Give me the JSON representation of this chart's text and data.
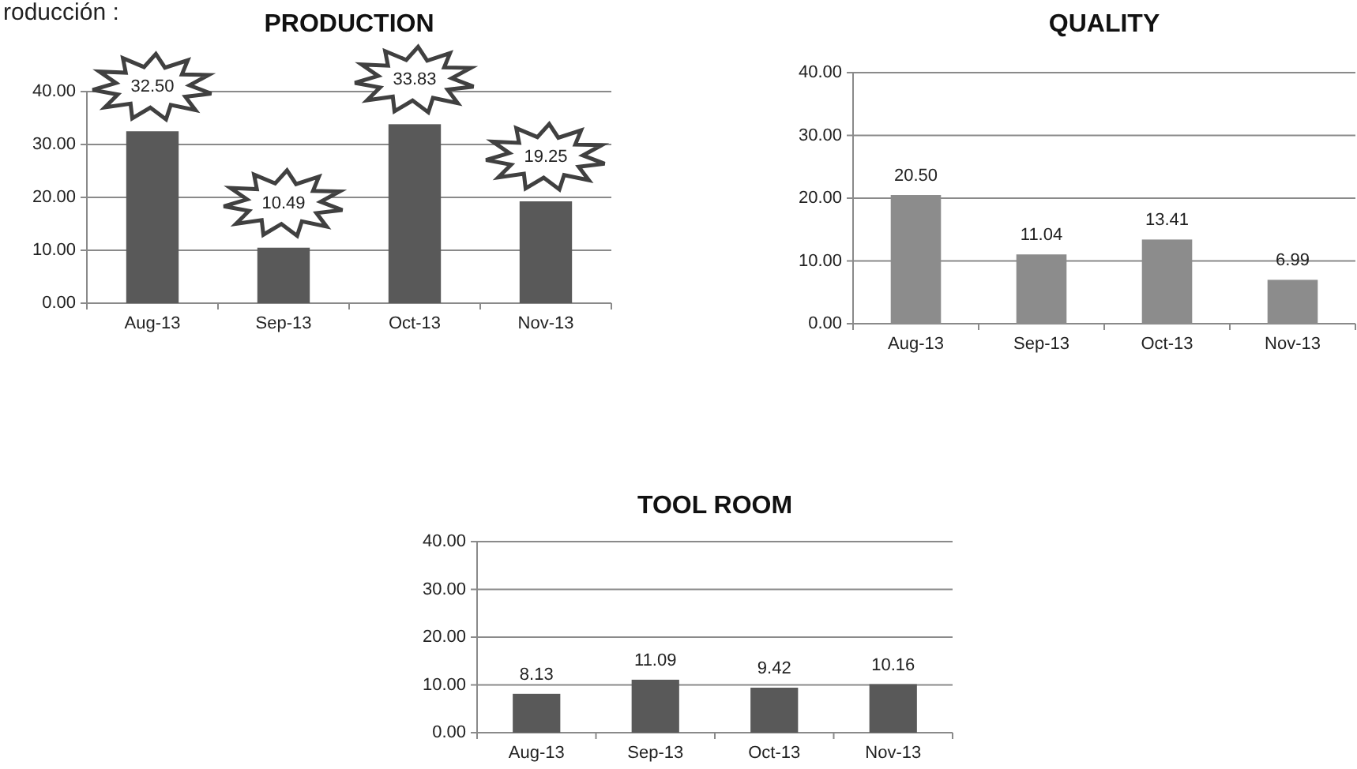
{
  "chart_data": [
    {
      "type": "bar",
      "title": "PRODUCTION",
      "annotations": [
        "roducción :"
      ],
      "categories": [
        "Aug-13",
        "Sep-13",
        "Oct-13",
        "Nov-13"
      ],
      "values": [
        32.5,
        10.49,
        33.83,
        19.25
      ],
      "value_labels": [
        "32.50",
        "10.49",
        "33.83",
        "19.25"
      ],
      "color": "#595959",
      "ylim": [
        0,
        40
      ],
      "yticks": [
        {
          "value": 0,
          "label": "0.00"
        },
        {
          "value": 10,
          "label": "10.00"
        },
        {
          "value": 20,
          "label": "20.00"
        },
        {
          "value": 30,
          "label": "30.00"
        },
        {
          "value": 40,
          "label": "40.00"
        }
      ],
      "grid": "y"
    },
    {
      "type": "bar",
      "title": "QUALITY",
      "categories": [
        "Aug-13",
        "Sep-13",
        "Oct-13",
        "Nov-13"
      ],
      "values": [
        20.5,
        11.04,
        13.41,
        6.99
      ],
      "value_labels": [
        "20.50",
        "11.04",
        "13.41",
        "6.99"
      ],
      "color": "#8c8c8c",
      "ylim": [
        0,
        40
      ],
      "yticks": [
        {
          "value": 0,
          "label": "0.00"
        },
        {
          "value": 10,
          "label": "10.00"
        },
        {
          "value": 20,
          "label": "20.00"
        },
        {
          "value": 30,
          "label": "30.00"
        },
        {
          "value": 40,
          "label": "40.00"
        }
      ],
      "grid": "y"
    },
    {
      "type": "bar",
      "title": "TOOL ROOM",
      "categories": [
        "Aug-13",
        "Sep-13",
        "Oct-13",
        "Nov-13"
      ],
      "values": [
        8.13,
        11.09,
        9.42,
        10.16
      ],
      "value_labels": [
        "8.13",
        "11.09",
        "9.42",
        "10.16"
      ],
      "color": "#595959",
      "ylim": [
        0,
        40
      ],
      "yticks": [
        {
          "value": 0,
          "label": "0.00"
        },
        {
          "value": 10,
          "label": "10.00"
        },
        {
          "value": 20,
          "label": "20.00"
        },
        {
          "value": 30,
          "label": "30.00"
        },
        {
          "value": 40,
          "label": "40.00"
        }
      ],
      "grid": "y"
    }
  ]
}
